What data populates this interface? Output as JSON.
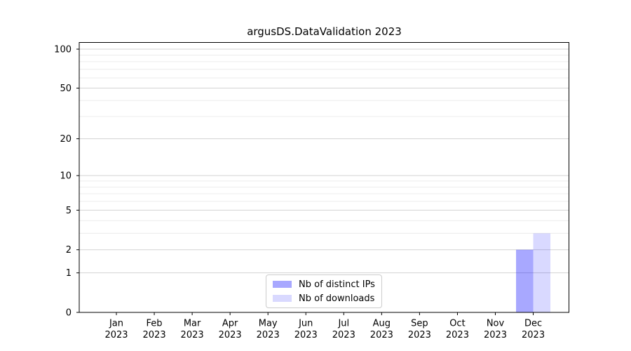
{
  "chart_data": {
    "type": "bar",
    "title": "argusDS.DataValidation 2023",
    "categories": [
      "Jan",
      "Feb",
      "Mar",
      "Apr",
      "May",
      "Jun",
      "Jul",
      "Aug",
      "Sep",
      "Oct",
      "Nov",
      "Dec"
    ],
    "year_label": "2023",
    "series": [
      {
        "name": "Nb of distinct IPs",
        "values": [
          0,
          0,
          0,
          0,
          0,
          0,
          0,
          0,
          0,
          0,
          0,
          2
        ],
        "color": "rgba(0,0,255,0.34)"
      },
      {
        "name": "Nb of downloads",
        "values": [
          0,
          0,
          0,
          0,
          0,
          0,
          0,
          0,
          0,
          0,
          0,
          3
        ],
        "color": "rgba(0,0,255,0.15)"
      }
    ],
    "xlabel": "",
    "ylabel": "",
    "yscale": "log1p",
    "yticks": [
      0,
      1,
      2,
      5,
      10,
      20,
      50,
      100
    ],
    "yticks_minor": [
      3,
      4,
      6,
      7,
      8,
      9,
      30,
      40,
      60,
      70,
      80,
      90
    ],
    "ylim": [
      0,
      113
    ],
    "grid": true,
    "grid_major_color": "#d3d3d3",
    "grid_minor_color": "#ececec",
    "axis_color": "#000000",
    "text_color": "#000000",
    "legend_position": "lower center"
  }
}
